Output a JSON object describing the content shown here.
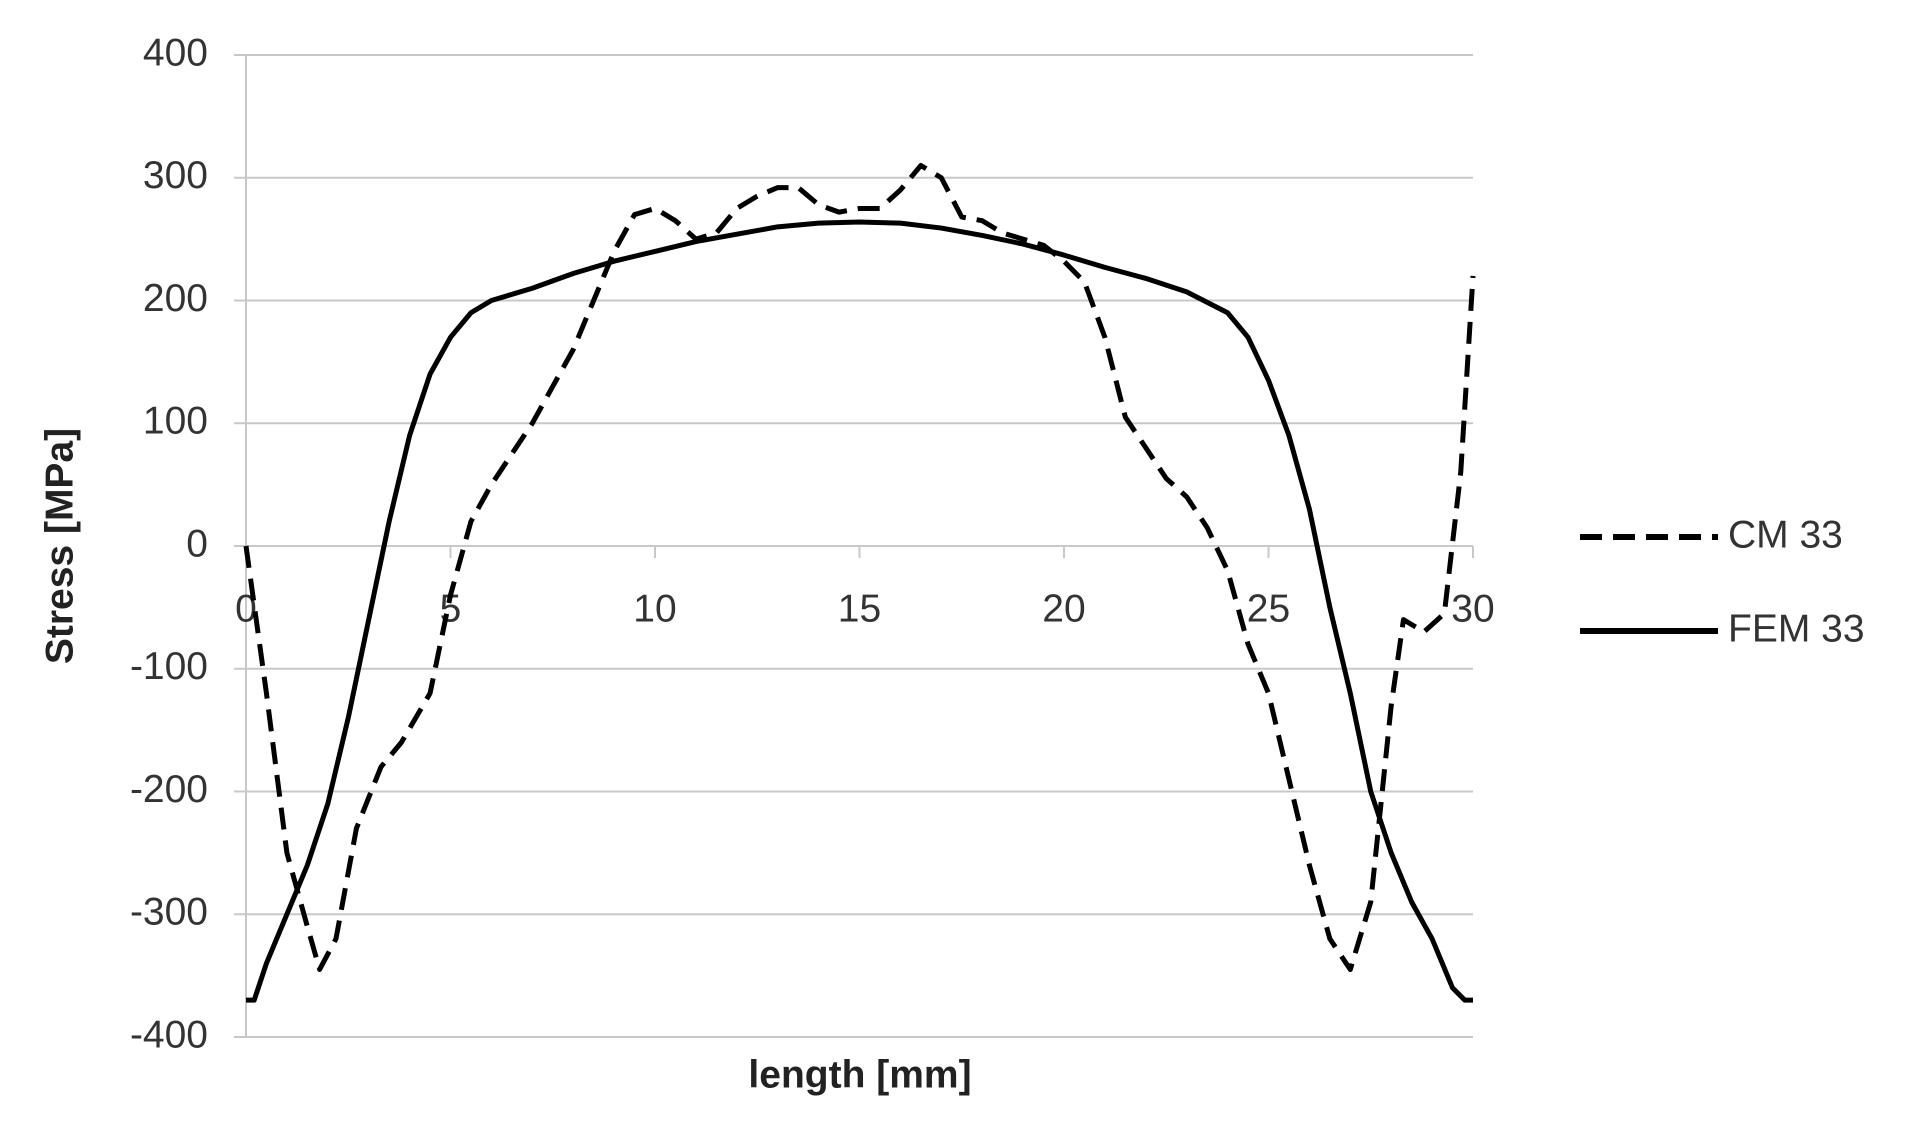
{
  "chart_data": {
    "type": "line",
    "xlabel": "length [mm]",
    "ylabel": "Stress [MPa]",
    "xlim": [
      0,
      30
    ],
    "xticks": [
      0,
      5,
      10,
      15,
      20,
      25,
      30
    ],
    "ylim": [
      -400,
      400
    ],
    "yticks": [
      -400,
      -300,
      -200,
      -100,
      0,
      100,
      200,
      300,
      400
    ],
    "grid": true,
    "legend": "right",
    "series": [
      {
        "name": "CM 33",
        "color": "#000000",
        "dash": true,
        "x": [
          0,
          0.5,
          1,
          1.5,
          1.8,
          2.2,
          2.7,
          3.3,
          3.8,
          4.5,
          5,
          5.5,
          6,
          7,
          8,
          8.5,
          9,
          9.5,
          10,
          10.5,
          11,
          11.5,
          12,
          12.5,
          13,
          13.5,
          14,
          14.5,
          15,
          15.5,
          16,
          16.5,
          17,
          17.5,
          18,
          18.5,
          19,
          19.5,
          20,
          20.5,
          21,
          21.5,
          22,
          22.5,
          23,
          23.5,
          24,
          24.5,
          25,
          25.5,
          26,
          26.5,
          27,
          27.5,
          28,
          28.3,
          28.8,
          29.3,
          29.7,
          30
        ],
        "values": [
          0,
          -120,
          -250,
          -310,
          -345,
          -320,
          -230,
          -180,
          -160,
          -120,
          -40,
          20,
          50,
          100,
          160,
          200,
          240,
          270,
          275,
          265,
          250,
          255,
          275,
          285,
          292,
          292,
          278,
          272,
          275,
          275,
          290,
          310,
          300,
          268,
          265,
          255,
          250,
          245,
          232,
          215,
          170,
          105,
          80,
          55,
          40,
          15,
          -20,
          -80,
          -120,
          -190,
          -260,
          -320,
          -345,
          -290,
          -130,
          -60,
          -70,
          -55,
          60,
          220
        ]
      },
      {
        "name": "FEM 33",
        "color": "#000000",
        "dash": false,
        "x": [
          0,
          0.2,
          0.5,
          1,
          1.5,
          2,
          2.5,
          3,
          3.5,
          4,
          4.5,
          5,
          5.5,
          6,
          7,
          8,
          9,
          10,
          11,
          12,
          13,
          14,
          15,
          16,
          17,
          18,
          19,
          20,
          21,
          22,
          23,
          24,
          24.5,
          25,
          25.5,
          26,
          26.5,
          27,
          27.5,
          28,
          28.5,
          29,
          29.5,
          29.8,
          30
        ],
        "values": [
          -370,
          -370,
          -340,
          -300,
          -260,
          -210,
          -140,
          -60,
          20,
          90,
          140,
          170,
          190,
          200,
          210,
          222,
          232,
          240,
          248,
          254,
          260,
          263,
          264,
          263,
          259,
          253,
          246,
          237,
          227,
          218,
          207,
          190,
          170,
          135,
          90,
          30,
          -50,
          -120,
          -200,
          -250,
          -290,
          -320,
          -360,
          -370,
          -370
        ]
      }
    ]
  }
}
